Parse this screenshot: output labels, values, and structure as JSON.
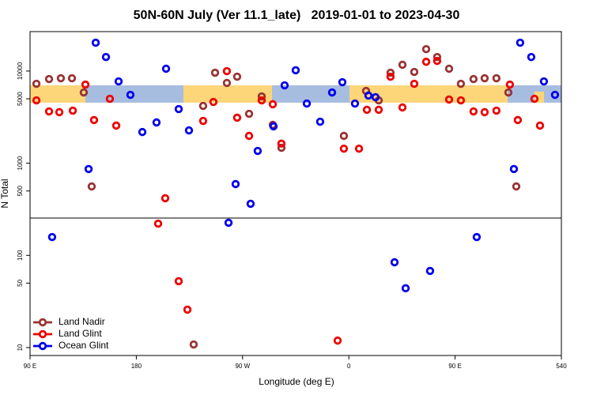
{
  "chart_data": {
    "type": "scatter",
    "title": "50N-60N July (Ver 11.1_late)   2019-01-01 to 2023-04-30",
    "x_label": "Longitude (deg E)",
    "y_label": "N Total",
    "log_y": true,
    "legend": "bottomleft",
    "hline": 254,
    "xlim": [
      90,
      540
    ],
    "xticks": [
      {
        "value": 90,
        "label": "90 E"
      },
      180,
      {
        "value": 270,
        "label": "90 W"
      },
      {
        "value": 360,
        "label": "0"
      },
      {
        "value": 450,
        "label": "90 E"
      },
      540
    ],
    "ylim": [
      8.2,
      26800
    ],
    "yticks": [
      10,
      50,
      100,
      500,
      1000,
      5000,
      10000
    ],
    "series": [
      {
        "name": "Land Nadir",
        "color": "#993333",
        "x": [
          95.4,
          106.1,
          116.1,
          125.5,
          135.5,
          142.2,
          228.6,
          236.6,
          246.7,
          256.7,
          265.4,
          275.5,
          286.2,
          295.6,
          302.9,
          355.8,
          374.6,
          385.3,
          395.3,
          405.4,
          415.4,
          425.5,
          434.8,
          444.9,
          454.9,
          465.6,
          475,
          485,
          495.1,
          501.8
        ],
        "values": [
          7280,
          8190,
          8360,
          8360,
          5860,
          560,
          10.8,
          4190,
          9600,
          7430,
          8690,
          3440,
          5310,
          2610,
          1470,
          1980,
          6090,
          4810,
          9600,
          11700,
          9790,
          17300,
          14200,
          10600,
          7280,
          8190,
          8360,
          8360,
          5860,
          560
        ]
      },
      {
        "name": "Land Glint",
        "color": "#ee0000",
        "x": [
          95.4,
          106.1,
          114.8,
          126.2,
          136.9,
          144.2,
          157.6,
          163,
          198.5,
          204.5,
          215.9,
          223.3,
          236.6,
          245.3,
          256.7,
          265.4,
          275.5,
          286.2,
          295.6,
          302.9,
          350.5,
          355.8,
          368.6,
          375.3,
          385.3,
          395.3,
          405.4,
          415.4,
          425.5,
          434.8,
          444.9,
          454.9,
          465.6,
          475,
          485,
          496.4,
          503.1,
          517.2,
          521.9
        ],
        "values": [
          4810,
          3650,
          3580,
          3720,
          7130,
          2940,
          5000,
          2560,
          221,
          417,
          52.5,
          25.8,
          2880,
          4620,
          9980,
          3120,
          1980,
          4810,
          4360,
          1630,
          11.9,
          1440,
          1440,
          3800,
          3800,
          8690,
          4030,
          7280,
          12600,
          12900,
          4910,
          4810,
          3650,
          3580,
          3720,
          7130,
          2940,
          5000,
          2560
        ]
      },
      {
        "name": "Ocean Glint",
        "color": "#0000ee",
        "x": [
          108.7,
          139.6,
          145.6,
          154.3,
          165,
          175,
          185.1,
          197.1,
          205.2,
          215.9,
          224.6,
          258.1,
          264.1,
          276.8,
          282.8,
          296.2,
          305.6,
          315,
          324.4,
          335.7,
          345.8,
          354.5,
          365.2,
          376.6,
          382.6,
          398.7,
          408.1,
          428.8,
          468.3,
          499.8,
          505.1,
          514.5,
          525.2,
          534.6
        ],
        "values": [
          158,
          865,
          20300,
          14200,
          7720,
          5520,
          2180,
          2770,
          10600,
          3870,
          2270,
          226,
          594,
          363,
          1360,
          2510,
          7000,
          10200,
          4440,
          2820,
          5860,
          7570,
          4440,
          5420,
          5200,
          84.2,
          44,
          67.8,
          158,
          865,
          20300,
          14200,
          7720,
          5520
        ]
      }
    ]
  }
}
